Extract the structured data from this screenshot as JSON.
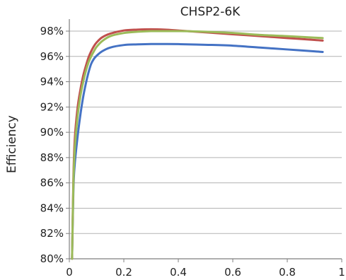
{
  "chart_data": {
    "type": "line",
    "title": "CHSP2-6K",
    "xlabel": "",
    "ylabel": "Efficiency",
    "xlim": [
      0,
      1
    ],
    "ylim": [
      80,
      99
    ],
    "x_ticks": [
      0,
      0.2,
      0.4,
      0.6,
      0.8,
      1
    ],
    "x_tick_labels": [
      "0",
      "0.2",
      "0.4",
      "0.6",
      "0.8",
      "1"
    ],
    "y_ticks": [
      80,
      82,
      84,
      86,
      88,
      90,
      92,
      94,
      96,
      98
    ],
    "y_tick_labels": [
      "80%",
      "82%",
      "84%",
      "86%",
      "88%",
      "90%",
      "92%",
      "94%",
      "96%",
      "98%"
    ],
    "grid": {
      "horizontal": true,
      "vertical": false
    },
    "legend": "none",
    "series": [
      {
        "color": "#4472c4",
        "x": [
          0.01,
          0.015,
          0.02,
          0.03,
          0.04,
          0.05,
          0.06,
          0.07,
          0.08,
          0.09,
          0.1,
          0.12,
          0.15,
          0.2,
          0.25,
          0.3,
          0.35,
          0.4,
          0.5,
          0.6,
          0.7,
          0.8,
          0.9,
          0.93
        ],
        "values": [
          80.0,
          85.5,
          87.5,
          89.6,
          91.3,
          92.7,
          93.8,
          94.7,
          95.4,
          95.8,
          96.05,
          96.4,
          96.7,
          96.9,
          96.95,
          96.98,
          96.98,
          96.97,
          96.92,
          96.85,
          96.7,
          96.55,
          96.4,
          96.35
        ]
      },
      {
        "color": "#c0504d",
        "x": [
          0.01,
          0.015,
          0.02,
          0.03,
          0.04,
          0.05,
          0.06,
          0.07,
          0.08,
          0.09,
          0.1,
          0.12,
          0.15,
          0.2,
          0.25,
          0.3,
          0.35,
          0.4,
          0.5,
          0.6,
          0.7,
          0.8,
          0.9,
          0.93
        ],
        "values": [
          80.0,
          86.5,
          89.5,
          91.9,
          93.3,
          94.4,
          95.2,
          95.9,
          96.4,
          96.8,
          97.1,
          97.5,
          97.8,
          98.05,
          98.12,
          98.15,
          98.12,
          98.05,
          97.9,
          97.75,
          97.6,
          97.45,
          97.3,
          97.25
        ]
      },
      {
        "color": "#9bbb59",
        "x": [
          0.01,
          0.015,
          0.02,
          0.03,
          0.04,
          0.05,
          0.06,
          0.07,
          0.08,
          0.09,
          0.1,
          0.12,
          0.15,
          0.2,
          0.25,
          0.3,
          0.35,
          0.4,
          0.5,
          0.6,
          0.7,
          0.8,
          0.9,
          0.93
        ],
        "values": [
          80.0,
          86.0,
          88.7,
          91.2,
          92.8,
          93.9,
          94.8,
          95.5,
          96.0,
          96.4,
          96.75,
          97.2,
          97.6,
          97.85,
          97.95,
          98.0,
          98.0,
          98.0,
          97.95,
          97.85,
          97.7,
          97.6,
          97.48,
          97.45
        ]
      }
    ]
  }
}
